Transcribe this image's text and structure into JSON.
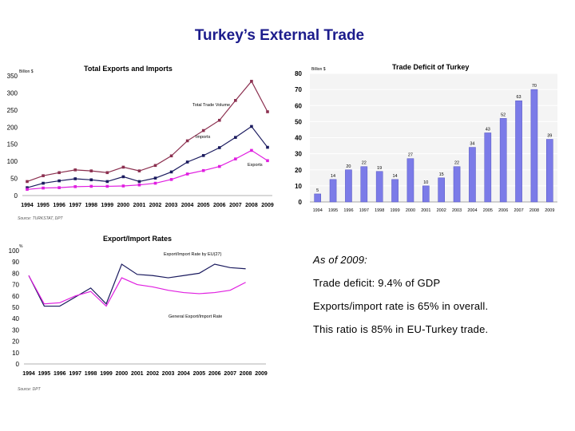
{
  "slide": {
    "title": "Turkey’s External Trade",
    "notes": [
      "As of 2009:",
      "Trade deficit: 9.4% of GDP",
      "Exports/import rate is 65% in overall.",
      "This ratio is 85% in EU-Turkey trade."
    ]
  },
  "chart_data": [
    {
      "type": "line",
      "title": "Total Exports and Imports",
      "ylabel": "Billion $",
      "source": "Source: TURKSTAT, DPT",
      "ylim": [
        0,
        350
      ],
      "yticks": [
        0,
        50,
        100,
        150,
        200,
        250,
        300,
        350
      ],
      "categories": [
        "1994",
        "1995",
        "1996",
        "1997",
        "1998",
        "1999",
        "2000",
        "2001",
        "2002",
        "2003",
        "2004",
        "2005",
        "2006",
        "2007",
        "2008",
        "2009"
      ],
      "series": [
        {
          "name": "Total Trade Volume",
          "color": "#8b2f4f",
          "values": [
            41,
            58,
            67,
            75,
            72,
            67,
            83,
            72,
            88,
            116,
            160,
            190,
            220,
            278,
            334,
            245
          ]
        },
        {
          "name": "Imports",
          "color": "#1a1a5e",
          "values": [
            23,
            36,
            43,
            49,
            46,
            41,
            55,
            41,
            51,
            69,
            98,
            117,
            140,
            170,
            202,
            141
          ]
        },
        {
          "name": "Exports",
          "color": "#e01ee0",
          "values": [
            18,
            22,
            23,
            26,
            27,
            27,
            28,
            31,
            36,
            47,
            63,
            73,
            85,
            107,
            132,
            102
          ]
        }
      ],
      "legend": "inline labels"
    },
    {
      "type": "bar",
      "title": "Trade Deficit of Turkey",
      "ylabel": "Billion $",
      "ylim": [
        0,
        80
      ],
      "yticks": [
        0,
        10,
        20,
        30,
        40,
        50,
        60,
        70,
        80
      ],
      "categories": [
        "1994",
        "1995",
        "1996",
        "1997",
        "1998",
        "1999",
        "2000",
        "2001",
        "2002",
        "2003",
        "2004",
        "2005",
        "2006",
        "2007",
        "2008",
        "2009"
      ],
      "values": [
        5,
        14,
        20,
        22,
        19,
        14,
        27,
        10,
        15,
        22,
        34,
        43,
        52,
        63,
        70,
        39
      ],
      "color": "#7b7be8"
    },
    {
      "type": "line",
      "title": "Export/Import Rates",
      "ylabel": "%",
      "source": "Source: DPT",
      "ylim": [
        0,
        100
      ],
      "yticks": [
        0,
        10,
        20,
        30,
        40,
        50,
        60,
        70,
        80,
        90,
        100
      ],
      "categories": [
        "1994",
        "1995",
        "1996",
        "1997",
        "1998",
        "1999",
        "2000",
        "2001",
        "2002",
        "2003",
        "2004",
        "2005",
        "2006",
        "2007",
        "2008",
        "2009"
      ],
      "series": [
        {
          "name": "Export/Import Rate by EU(27)",
          "color": "#1a1a5e",
          "values": [
            78,
            51,
            51,
            59,
            67,
            53,
            88,
            79,
            78,
            76,
            78,
            80,
            88,
            85,
            84,
            null
          ]
        },
        {
          "name": "General Export/Import Rate",
          "color": "#e01ee0",
          "values": [
            78,
            53,
            54,
            60,
            64,
            51,
            76,
            70,
            68,
            65,
            63,
            62,
            63,
            65,
            72,
            null
          ]
        }
      ],
      "legend": "inline labels"
    }
  ]
}
